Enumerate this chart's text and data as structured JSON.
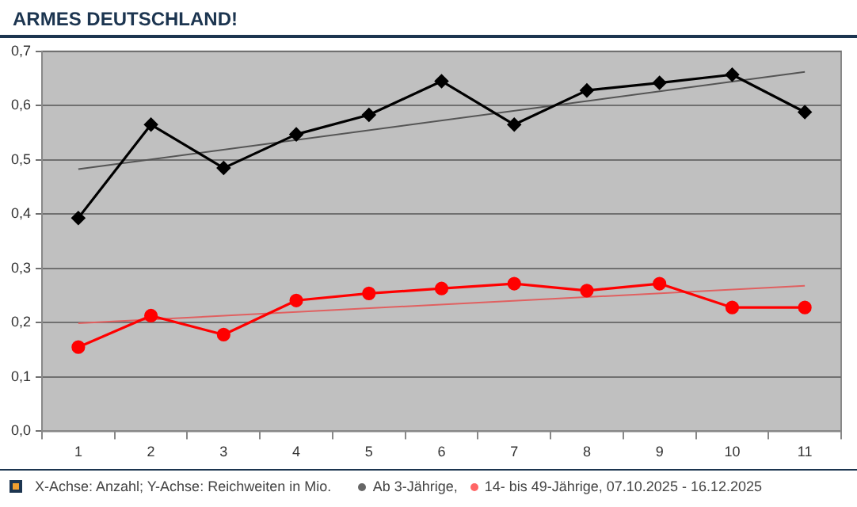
{
  "chart_data": {
    "type": "line",
    "title": "ARMES DEUTSCHLAND!",
    "annotations": [
      "X-Achse: Anzahl; Y-Achse: Reichweiten in Mio."
    ],
    "categories": [
      "1",
      "2",
      "3",
      "4",
      "5",
      "6",
      "7",
      "8",
      "9",
      "10",
      "11"
    ],
    "series": [
      {
        "name": "Ab 3-Jährige,",
        "color": "#000000",
        "marker": "diamond",
        "values": [
          0.393,
          0.565,
          0.485,
          0.547,
          0.583,
          0.645,
          0.565,
          0.628,
          0.642,
          0.657,
          0.588
        ]
      },
      {
        "name": "14- bis 49-Jährige, 07.10.2025 - 16.12.2025",
        "color": "#ff0000",
        "marker": "circle",
        "values": [
          0.155,
          0.213,
          0.178,
          0.241,
          0.254,
          0.263,
          0.272,
          0.259,
          0.272,
          0.228,
          0.228
        ]
      },
      {
        "type": "line",
        "color": "#555555",
        "marker": "none",
        "x": [
          "1",
          "11"
        ],
        "values": [
          0.483,
          0.662
        ]
      },
      {
        "type": "line",
        "color": "#e06060",
        "marker": "none",
        "x": [
          "1",
          "11"
        ],
        "values": [
          0.199,
          0.268
        ]
      }
    ],
    "ylim": [
      0,
      0.7
    ],
    "yticks": [
      {
        "value": 0,
        "label": "0,0"
      },
      {
        "value": 0.1,
        "label": "0,1"
      },
      {
        "value": 0.2,
        "label": "0,2"
      },
      {
        "value": 0.3,
        "label": "0,3"
      },
      {
        "value": 0.4,
        "label": "0,4"
      },
      {
        "value": 0.5,
        "label": "0,5"
      },
      {
        "value": 0.6,
        "label": "0,6"
      },
      {
        "value": 0.7,
        "label": "0,7"
      }
    ],
    "grid": "y",
    "legend": "bottom"
  }
}
